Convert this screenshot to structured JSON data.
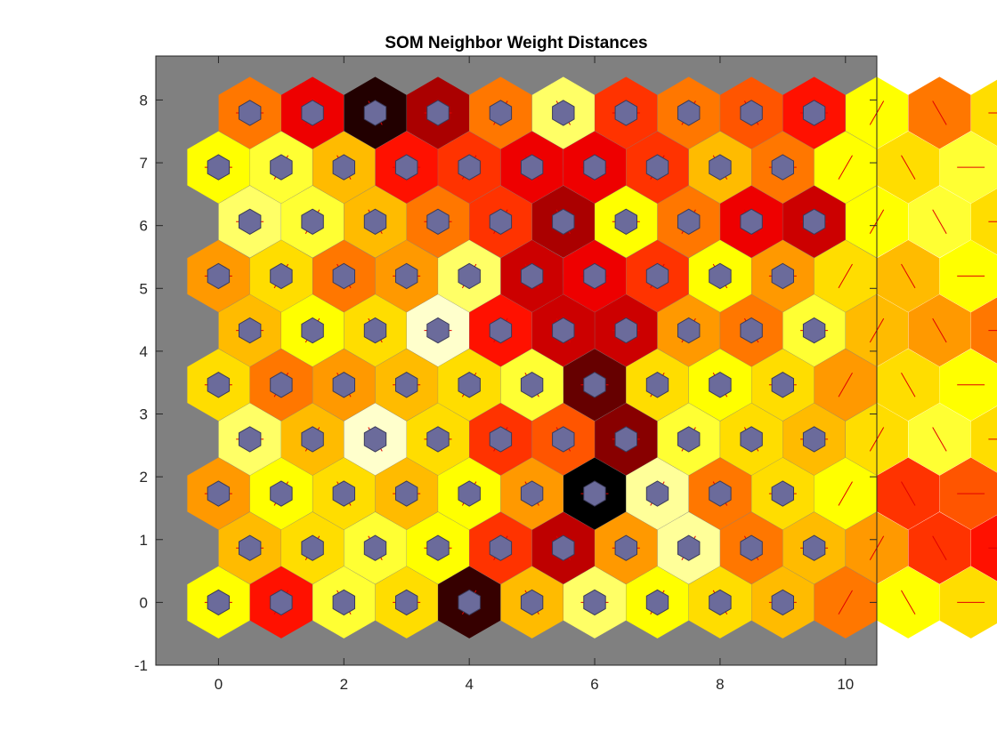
{
  "chart_data": {
    "type": "heatmap",
    "title": "SOM Neighbor Weight Distances",
    "xlabel": "",
    "ylabel": "",
    "xlim": [
      -1,
      10.5
    ],
    "ylim": [
      -1,
      8.7
    ],
    "xticks": [
      "0",
      "2",
      "4",
      "6",
      "8",
      "10"
    ],
    "yticks": [
      "-1",
      "0",
      "1",
      "2",
      "3",
      "4",
      "5",
      "6",
      "7",
      "8"
    ],
    "grid": "10x10 hexagonal",
    "grid_rows": 10,
    "grid_cols": 10,
    "colormap": "hot (black = largest distance, yellow = smallest)",
    "colors": {
      "background": "#808080",
      "neuron": "#6b6b9b",
      "neuron_edge": "#3a3a5a",
      "connection_line": "#e00000"
    },
    "neighbor_distances_normalized": [
      [
        0.25,
        0.6,
        0.2,
        0.3,
        0.92,
        0.35,
        0.15,
        0.25,
        0.3,
        0.35,
        0.45,
        0.25,
        0.3,
        0.35,
        0.5,
        0.45,
        0.3,
        0.35
      ],
      [
        0.35,
        0.3,
        0.2,
        0.25,
        0.55,
        0.72,
        0.4,
        0.1,
        0.45,
        0.35,
        0.4,
        0.55,
        0.6,
        0.45,
        0.35,
        0.7,
        0.8,
        0.2
      ],
      [
        0.4,
        0.25,
        0.3,
        0.35,
        0.25,
        0.4,
        1.0,
        0.1,
        0.45,
        0.3,
        0.25,
        0.55,
        0.5,
        0.55,
        0.35,
        0.55,
        0.6,
        0.3
      ],
      [
        0.15,
        0.35,
        0.05,
        0.3,
        0.55,
        0.5,
        0.8,
        0.2,
        0.3,
        0.35,
        0.3,
        0.2,
        0.3,
        0.3,
        0.35,
        0.4,
        0.35,
        0.25
      ],
      [
        0.3,
        0.45,
        0.4,
        0.35,
        0.3,
        0.2,
        0.85,
        0.3,
        0.25,
        0.3,
        0.4,
        0.3,
        0.25,
        0.35,
        0.5,
        0.45,
        0.35,
        0.3
      ],
      [
        0.35,
        0.25,
        0.3,
        0.05,
        0.6,
        0.7,
        0.7,
        0.4,
        0.45,
        0.2,
        0.35,
        0.4,
        0.45,
        0.55,
        0.3,
        0.35,
        0.25,
        0.35
      ],
      [
        0.4,
        0.3,
        0.45,
        0.4,
        0.15,
        0.7,
        0.65,
        0.55,
        0.25,
        0.4,
        0.3,
        0.35,
        0.25,
        0.1,
        0.45,
        0.35,
        0.4,
        0.3
      ],
      [
        0.15,
        0.2,
        0.35,
        0.45,
        0.55,
        0.75,
        0.25,
        0.45,
        0.65,
        0.7,
        0.25,
        0.2,
        0.3,
        0.35,
        0.3,
        0.35,
        0.4,
        0.45
      ],
      [
        0.25,
        0.2,
        0.35,
        0.6,
        0.55,
        0.65,
        0.65,
        0.55,
        0.35,
        0.45,
        0.25,
        0.3,
        0.2,
        0.3,
        0.35,
        0.25,
        0.3,
        0.7
      ],
      [
        0.45,
        0.65,
        0.95,
        0.75,
        0.45,
        0.15,
        0.55,
        0.45,
        0.5,
        0.6,
        0.25,
        0.45,
        0.3,
        0.3,
        0.2,
        0.4,
        0.15,
        0.45
      ]
    ],
    "neighbor_distances_normalized_note": "row 0 = y 0 (bottom row); 18 between-neuron cells per row, left to right"
  }
}
